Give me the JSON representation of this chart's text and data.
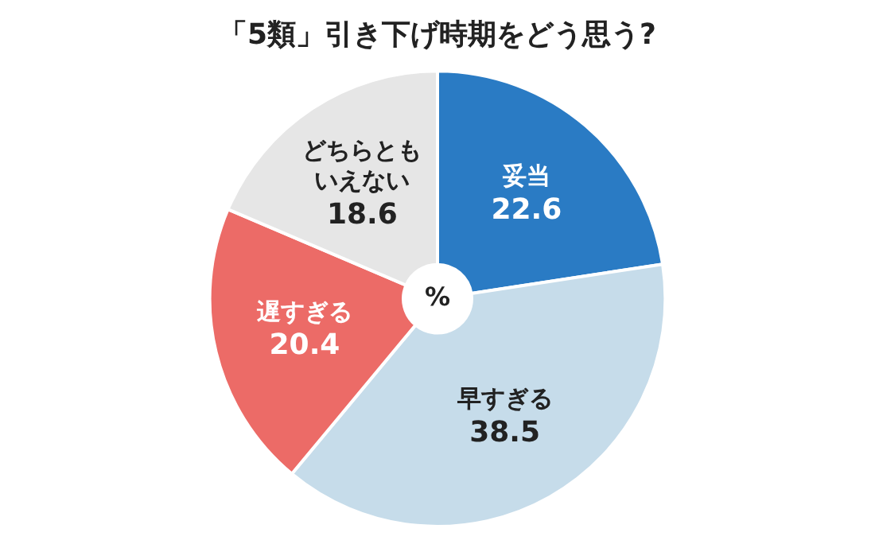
{
  "chart_data": {
    "type": "donut",
    "title": "「5類」引き下げ時期をどう思う?",
    "categories": [
      "妥当",
      "早すぎる",
      "遅すぎる",
      "どちらともいえない"
    ],
    "values": [
      22.6,
      38.5,
      20.4,
      18.6
    ],
    "colors": [
      "#2a7bc4",
      "#c6dcea",
      "#ec6b67",
      "#e6e6e6"
    ],
    "data_labels": true,
    "annotations": [
      "%"
    ]
  }
}
